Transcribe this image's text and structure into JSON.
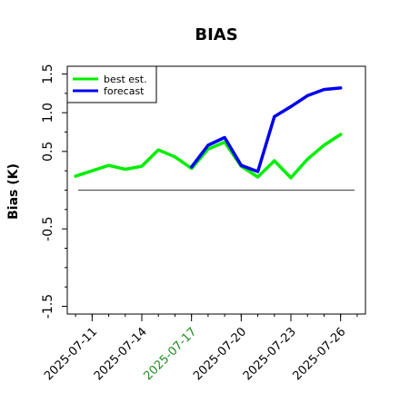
{
  "chart_data": {
    "type": "line",
    "title": "BIAS",
    "xlabel": "",
    "ylabel": "Bias (K)",
    "ylim": [
      -1.6,
      1.6
    ],
    "yticks": [
      1.5,
      1.0,
      0.5,
      -0.5,
      -1.5
    ],
    "ytick_labels": [
      "1.5",
      "1.0",
      "0.5",
      "-0.5",
      "-1.5"
    ],
    "xlim": [
      "2025-07-09T12:00",
      "2025-07-27T12:00"
    ],
    "xticks": [
      "2025-07-11",
      "2025-07-14",
      "2025-07-17",
      "2025-07-20",
      "2025-07-23",
      "2025-07-26"
    ],
    "xtick_highlight": "2025-07-17",
    "xtick_highlight_color": "#228B22",
    "minor_tick_interval_days": 1,
    "reference_line_y": 0,
    "grid": false,
    "legend_position": "top-left",
    "series": [
      {
        "name": "best est.",
        "color": "#00ee00",
        "x": [
          "2025-07-10",
          "2025-07-11",
          "2025-07-12",
          "2025-07-13",
          "2025-07-14",
          "2025-07-15",
          "2025-07-16",
          "2025-07-17",
          "2025-07-18",
          "2025-07-19",
          "2025-07-20",
          "2025-07-21",
          "2025-07-22",
          "2025-07-23",
          "2025-07-24",
          "2025-07-25",
          "2025-07-26"
        ],
        "values": [
          0.18,
          0.25,
          0.32,
          0.27,
          0.31,
          0.52,
          0.43,
          0.28,
          0.53,
          0.62,
          0.31,
          0.17,
          0.38,
          0.16,
          0.4,
          0.58,
          0.72
        ]
      },
      {
        "name": "forecast",
        "color": "#0000ee",
        "x": [
          "2025-07-17",
          "2025-07-18",
          "2025-07-19",
          "2025-07-20",
          "2025-07-21",
          "2025-07-22",
          "2025-07-23",
          "2025-07-24",
          "2025-07-25",
          "2025-07-26"
        ],
        "values": [
          0.3,
          0.58,
          0.68,
          0.32,
          0.24,
          0.95,
          1.08,
          1.22,
          1.3,
          1.32
        ]
      }
    ]
  }
}
